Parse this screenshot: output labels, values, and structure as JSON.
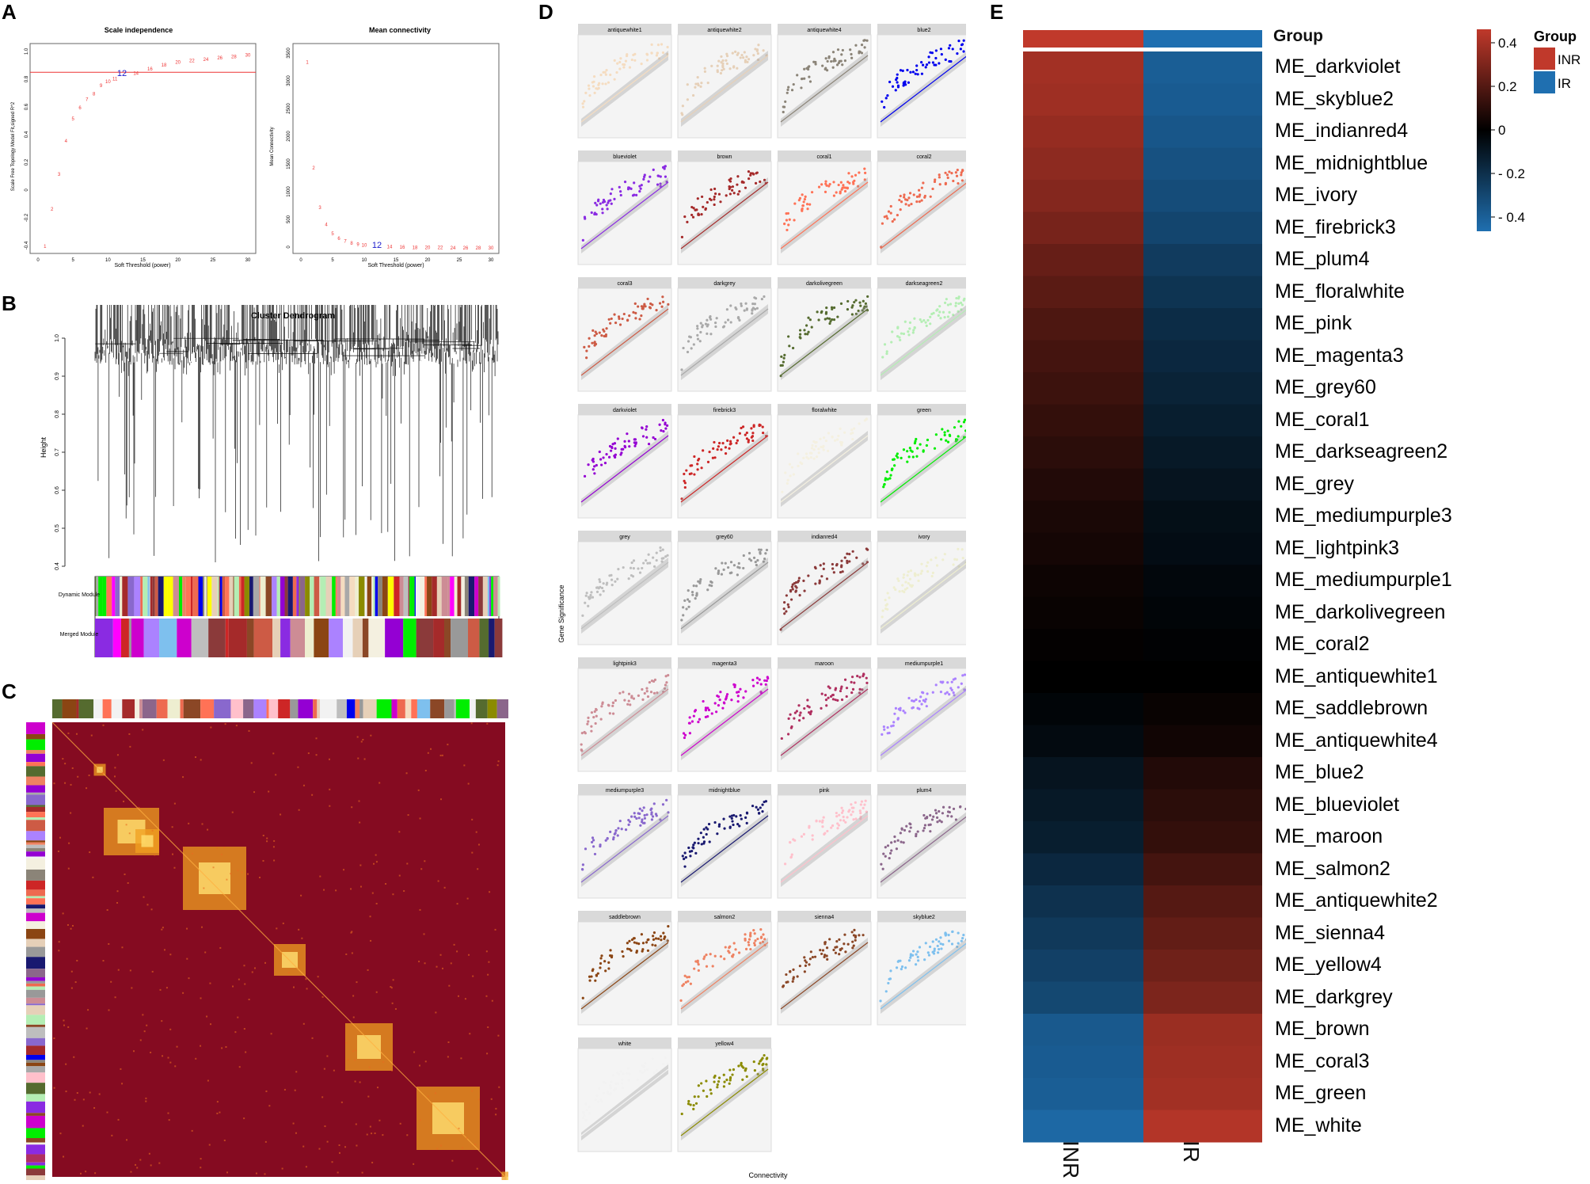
{
  "panels": {
    "a": "A",
    "b": "B",
    "c": "C",
    "d": "D",
    "e": "E"
  },
  "panel_a": {
    "left": {
      "title": "Scale independence",
      "xlabel": "Soft Threshold (power)",
      "ylabel": "Scale Free Topology Model Fit,signed R^2",
      "xticks": [
        "0",
        "5",
        "10",
        "15",
        "20",
        "25",
        "30"
      ],
      "yticks": [
        "-0.4",
        "-0.2",
        "0",
        "0.2",
        "0.4",
        "0.6",
        "0.8",
        "1.0"
      ],
      "cutoff": 0.85,
      "points": [
        [
          1,
          -0.4
        ],
        [
          2,
          -0.13
        ],
        [
          3,
          0.12
        ],
        [
          4,
          0.36
        ],
        [
          5,
          0.52
        ],
        [
          6,
          0.6
        ],
        [
          7,
          0.66
        ],
        [
          8,
          0.7
        ],
        [
          9,
          0.76
        ],
        [
          10,
          0.79
        ],
        [
          11,
          0.81
        ],
        [
          12,
          0.84
        ],
        [
          14,
          0.85
        ],
        [
          16,
          0.88
        ],
        [
          18,
          0.91
        ],
        [
          20,
          0.93
        ],
        [
          22,
          0.94
        ],
        [
          24,
          0.95
        ],
        [
          26,
          0.96
        ],
        [
          28,
          0.97
        ],
        [
          30,
          0.98
        ]
      ],
      "highlight": "12"
    },
    "right": {
      "title": "Mean connectivity",
      "xlabel": "Soft Threshold (power)",
      "ylabel": "Mean Connectivity",
      "xticks": [
        "0",
        "5",
        "10",
        "15",
        "20",
        "25",
        "30"
      ],
      "yticks": [
        "0",
        "500",
        "1000",
        "1500",
        "2000",
        "2500",
        "3000",
        "3500"
      ],
      "points": [
        [
          1,
          3350
        ],
        [
          2,
          1440
        ],
        [
          3,
          730
        ],
        [
          4,
          420
        ],
        [
          5,
          260
        ],
        [
          6,
          170
        ],
        [
          7,
          120
        ],
        [
          8,
          85
        ],
        [
          9,
          62
        ],
        [
          10,
          48
        ],
        [
          12,
          28
        ],
        [
          14,
          18
        ],
        [
          16,
          12
        ],
        [
          18,
          8
        ],
        [
          20,
          6
        ],
        [
          22,
          4
        ],
        [
          24,
          3
        ],
        [
          26,
          2
        ],
        [
          28,
          2
        ],
        [
          30,
          1
        ]
      ],
      "highlight": "12"
    }
  },
  "panel_b": {
    "title": "Cluster Dendrogram",
    "ylabel": "Height",
    "yticks": [
      "0.4",
      "0.5",
      "0.6",
      "0.7",
      "0.8",
      "0.9",
      "1.0"
    ],
    "row_labels": [
      "Dynamic Module",
      "Merged Module"
    ]
  },
  "panel_d": {
    "ylabel": "Gene Significance",
    "xlabel": "Connectivity",
    "modules": [
      {
        "name": "antiquewhite1",
        "color": "#f5dcc0"
      },
      {
        "name": "antiquewhite2",
        "color": "#e6d0b8"
      },
      {
        "name": "antiquewhite4",
        "color": "#8b8478"
      },
      {
        "name": "blue2",
        "color": "#0000ee"
      },
      {
        "name": "blueviolet",
        "color": "#8a2be2"
      },
      {
        "name": "brown",
        "color": "#a52a2a"
      },
      {
        "name": "coral1",
        "color": "#ff7256"
      },
      {
        "name": "coral2",
        "color": "#ee6a50"
      },
      {
        "name": "coral3",
        "color": "#cd5b45"
      },
      {
        "name": "darkgrey",
        "color": "#a9a9a9"
      },
      {
        "name": "darkolivegreen",
        "color": "#556b2f"
      },
      {
        "name": "darkseagreen2",
        "color": "#b4eeb4"
      },
      {
        "name": "darkviolet",
        "color": "#9400d3"
      },
      {
        "name": "firebrick3",
        "color": "#cd2626"
      },
      {
        "name": "floralwhite",
        "color": "#f4f0e0"
      },
      {
        "name": "green",
        "color": "#00ee00"
      },
      {
        "name": "grey",
        "color": "#bebebe"
      },
      {
        "name": "grey60",
        "color": "#999999"
      },
      {
        "name": "indianred4",
        "color": "#8b3a3a"
      },
      {
        "name": "ivory",
        "color": "#eeeed0"
      },
      {
        "name": "lightpink3",
        "color": "#cd8c95"
      },
      {
        "name": "magenta3",
        "color": "#cd00cd"
      },
      {
        "name": "maroon",
        "color": "#b03060"
      },
      {
        "name": "mediumpurple1",
        "color": "#ab82ff"
      },
      {
        "name": "mediumpurple3",
        "color": "#8968cd"
      },
      {
        "name": "midnightblue",
        "color": "#191970"
      },
      {
        "name": "pink",
        "color": "#ffc0cb"
      },
      {
        "name": "plum4",
        "color": "#8b668b"
      },
      {
        "name": "saddlebrown",
        "color": "#8b4513"
      },
      {
        "name": "salmon2",
        "color": "#ee8262"
      },
      {
        "name": "sienna4",
        "color": "#8b4726"
      },
      {
        "name": "skyblue2",
        "color": "#7ec0ee"
      },
      {
        "name": "white",
        "color": "#f2f2f2"
      },
      {
        "name": "yellow4",
        "color": "#8b8b00"
      }
    ]
  },
  "panel_e": {
    "group_label": "Group",
    "columns": [
      "INR",
      "IR"
    ],
    "legend": {
      "title": "Group",
      "items": [
        {
          "label": "INR",
          "color": "#c0392b"
        },
        {
          "label": "IR",
          "color": "#1f6fb0"
        }
      ],
      "scale_ticks": [
        "0.4",
        "0.2",
        "0",
        "- 0.2",
        "- 0.4"
      ],
      "low_color": "#1f6fb0",
      "mid_color": "#000000",
      "high_color": "#c0392b"
    },
    "chart_data": {
      "type": "heatmap",
      "columns": [
        "INR",
        "IR"
      ],
      "rows": [
        "ME_darkviolet",
        "ME_skyblue2",
        "ME_indianred4",
        "ME_midnightblue",
        "ME_ivory",
        "ME_firebrick3",
        "ME_plum4",
        "ME_floralwhite",
        "ME_pink",
        "ME_magenta3",
        "ME_grey60",
        "ME_coral1",
        "ME_darkseagreen2",
        "ME_grey",
        "ME_mediumpurple3",
        "ME_lightpink3",
        "ME_mediumpurple1",
        "ME_darkolivegreen",
        "ME_coral2",
        "ME_antiquewhite1",
        "ME_saddlebrown",
        "ME_antiquewhite4",
        "ME_blue2",
        "ME_blueviolet",
        "ME_maroon",
        "ME_salmon2",
        "ME_antiquewhite2",
        "ME_sienna4",
        "ME_yellow4",
        "ME_darkgrey",
        "ME_brown",
        "ME_coral3",
        "ME_green",
        "ME_white"
      ],
      "values": [
        [
          0.38,
          -0.38
        ],
        [
          0.37,
          -0.37
        ],
        [
          0.35,
          -0.35
        ],
        [
          0.33,
          -0.33
        ],
        [
          0.31,
          -0.31
        ],
        [
          0.28,
          -0.28
        ],
        [
          0.24,
          -0.24
        ],
        [
          0.21,
          -0.21
        ],
        [
          0.18,
          -0.18
        ],
        [
          0.16,
          -0.16
        ],
        [
          0.14,
          -0.14
        ],
        [
          0.12,
          -0.12
        ],
        [
          0.1,
          -0.1
        ],
        [
          0.08,
          -0.08
        ],
        [
          0.06,
          -0.06
        ],
        [
          0.05,
          -0.05
        ],
        [
          0.03,
          -0.03
        ],
        [
          0.02,
          -0.02
        ],
        [
          0.01,
          -0.01
        ],
        [
          0.0,
          0.0
        ],
        [
          -0.02,
          0.02
        ],
        [
          -0.04,
          0.04
        ],
        [
          -0.08,
          0.08
        ],
        [
          -0.1,
          0.1
        ],
        [
          -0.12,
          0.12
        ],
        [
          -0.16,
          0.16
        ],
        [
          -0.2,
          0.2
        ],
        [
          -0.23,
          0.23
        ],
        [
          -0.26,
          0.26
        ],
        [
          -0.29,
          0.29
        ],
        [
          -0.36,
          0.36
        ],
        [
          -0.37,
          0.37
        ],
        [
          -0.38,
          0.38
        ],
        [
          -0.42,
          0.42
        ]
      ],
      "scale_range": [
        -0.45,
        0.45
      ]
    }
  }
}
